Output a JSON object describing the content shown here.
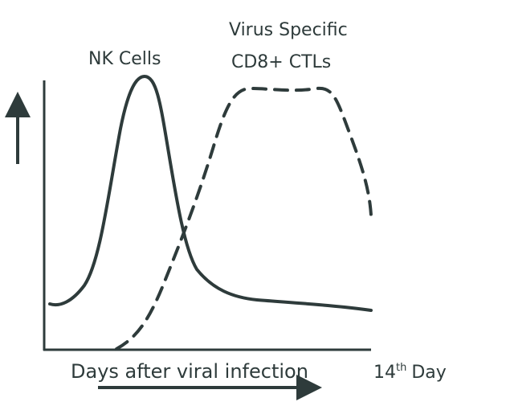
{
  "labels": {
    "nk": "NK Cells",
    "ctl_line1": "Virus Specific",
    "ctl_line2": "CD8+ CTLs"
  },
  "x_axis": {
    "label": "Days after viral infection",
    "end": {
      "number": "14",
      "suffix": "th",
      "word": "Day"
    }
  }
}
